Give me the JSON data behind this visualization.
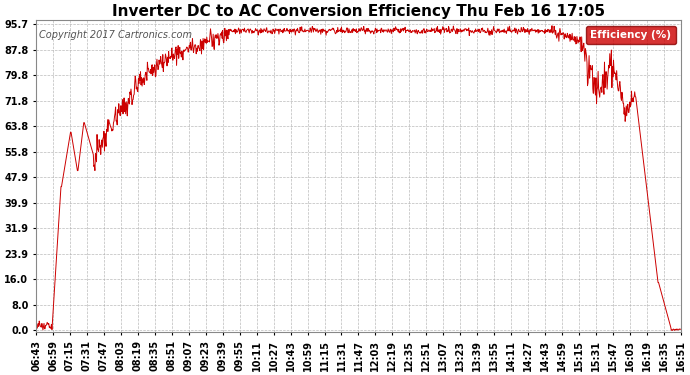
{
  "title": "Inverter DC to AC Conversion Efficiency Thu Feb 16 17:05",
  "copyright": "Copyright 2017 Cartronics.com",
  "legend_label": "Efficiency (%)",
  "legend_bg": "#cc0000",
  "legend_fg": "#ffffff",
  "line_color": "#cc0000",
  "bg_color": "#ffffff",
  "plot_bg": "#ffffff",
  "grid_color": "#aaaaaa",
  "yticks": [
    0.0,
    8.0,
    16.0,
    23.9,
    31.9,
    39.9,
    47.9,
    55.8,
    63.8,
    71.8,
    79.8,
    87.8,
    95.7
  ],
  "xtick_labels": [
    "06:43",
    "06:59",
    "07:15",
    "07:31",
    "07:47",
    "08:03",
    "08:19",
    "08:35",
    "08:51",
    "09:07",
    "09:23",
    "09:39",
    "09:55",
    "10:11",
    "10:27",
    "10:43",
    "10:59",
    "11:15",
    "11:31",
    "11:47",
    "12:03",
    "12:19",
    "12:35",
    "12:51",
    "13:07",
    "13:23",
    "13:39",
    "13:55",
    "14:11",
    "14:27",
    "14:43",
    "14:59",
    "15:15",
    "15:31",
    "15:47",
    "16:03",
    "16:19",
    "16:35",
    "16:51"
  ],
  "title_fontsize": 11,
  "copyright_fontsize": 7,
  "tick_fontsize": 7,
  "ymax": 97,
  "ymin": -0.5
}
